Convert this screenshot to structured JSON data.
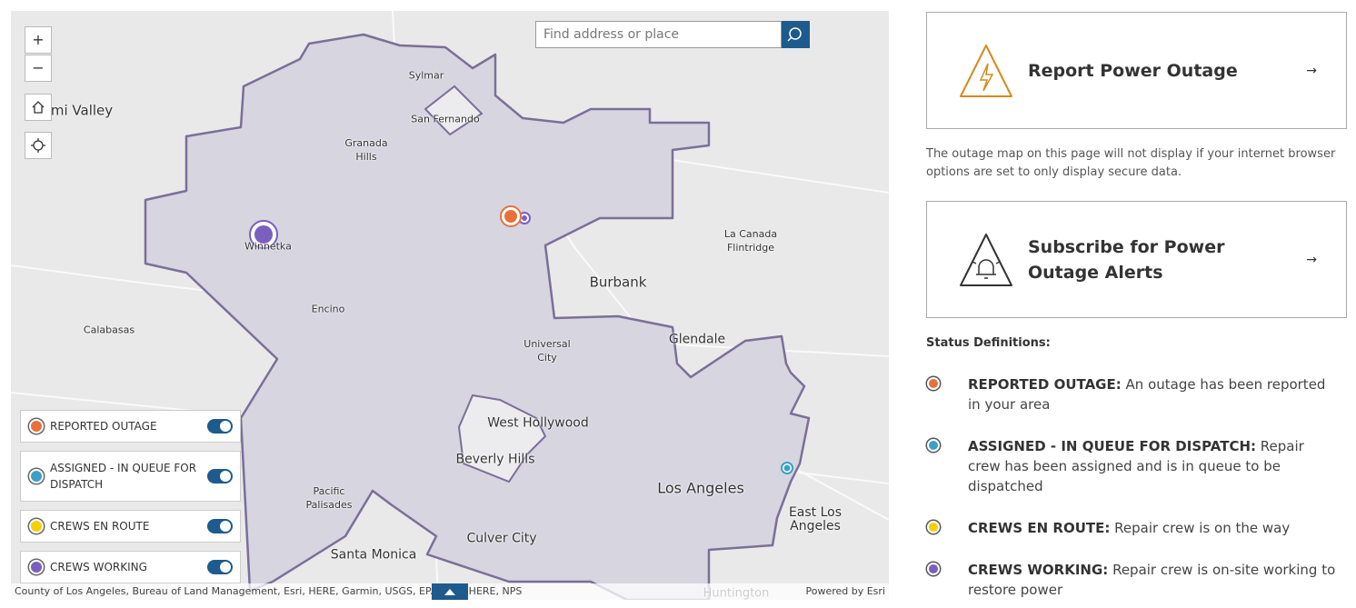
{
  "map": {
    "search_placeholder": "Find address or place",
    "zoom_in": "+",
    "zoom_out": "−",
    "place_labels": [
      "Sylmar",
      "San Fernando",
      "Granada Hills",
      "mi Valley",
      "Winnetka",
      "Encino",
      "Calabasas",
      "Burbank",
      "La Canada Flintridge",
      "Universal City",
      "Glendale",
      "West Hollywood",
      "Beverly Hills",
      "Pacific Palisades",
      "Los Angeles",
      "East Los Angeles",
      "Culver City",
      "Santa Monica",
      "Huntington"
    ],
    "layers": [
      "REPORTED OUTAGE",
      "ASSIGNED - IN QUEUE FOR DISPATCH",
      "CREWS EN ROUTE",
      "CREWS WORKING"
    ],
    "attribution": "County of Los Angeles, Bureau of Land Management, Esri, HERE, Garmin, USGS, EPA, Esri, HERE, NPS",
    "powered_by": "Powered by Esri"
  },
  "sidebar": {
    "report_button": "Report Power Outage",
    "report_arrow": "→",
    "notice": "The outage map on this page will not display if your internet browser options are set to only display secure data.",
    "subscribe_button": "Subscribe for Power Outage Alerts",
    "subscribe_arrow": "→",
    "status_heading": "Status Definitions:",
    "statuses": [
      {
        "term": "REPORTED OUTAGE:",
        "definition": "An outage has been reported in your area"
      },
      {
        "term": "ASSIGNED - IN QUEUE FOR DISPATCH:",
        "definition": "Repair crew has been assigned and is in queue to be dispatched"
      },
      {
        "term": "CREWS EN ROUTE:",
        "definition": "Repair crew is on the way"
      },
      {
        "term": "CREWS WORKING:",
        "definition": "Repair crew is on-site working to restore power"
      }
    ]
  }
}
